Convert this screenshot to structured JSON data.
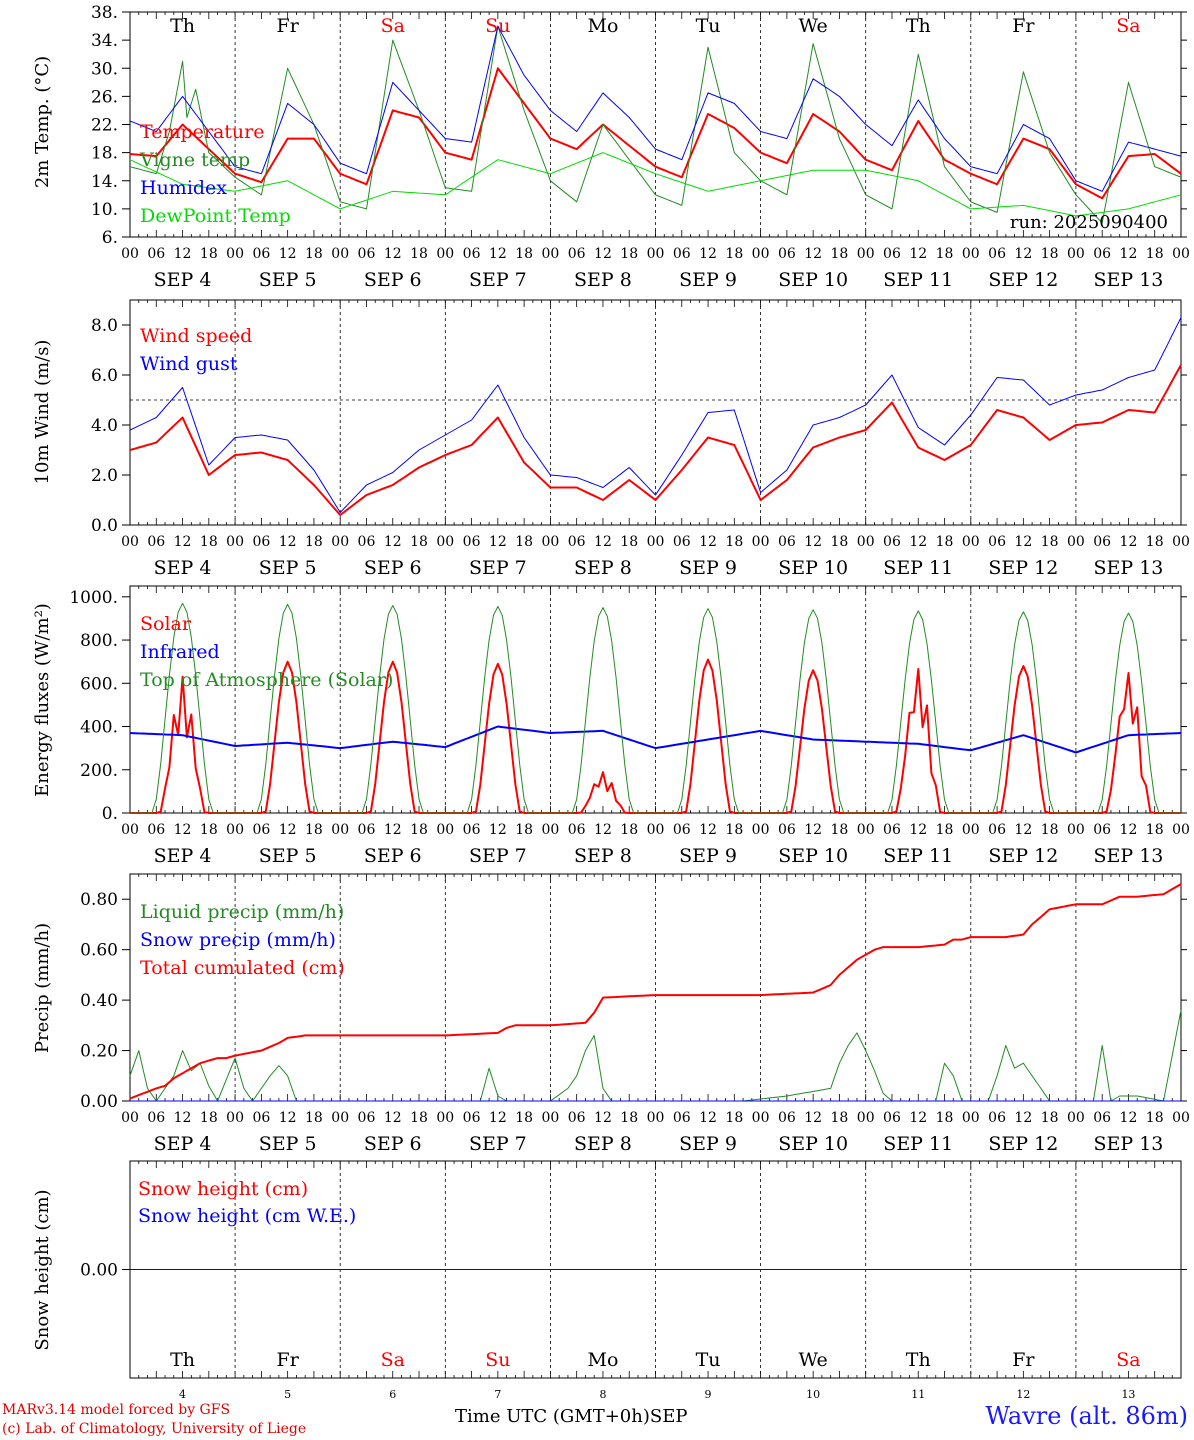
{
  "run_label": "run: 2025090400",
  "days": {
    "weekdays": [
      "Th",
      "Fr",
      "Sa",
      "Su",
      "Mo",
      "Tu",
      "We",
      "Th",
      "Fr",
      "Sa"
    ],
    "weekend_flags": [
      false,
      false,
      true,
      true,
      false,
      false,
      false,
      false,
      false,
      true
    ],
    "dates": [
      "SEP  4",
      "SEP  5",
      "SEP  6",
      "SEP  7",
      "SEP  8",
      "SEP  9",
      "SEP 10",
      "SEP 11",
      "SEP 12",
      "SEP 13"
    ],
    "day_numbers": [
      "4",
      "5",
      "6",
      "7",
      "8",
      "9",
      "10",
      "11",
      "12",
      "13"
    ],
    "hour_labels": [
      "00",
      "06",
      "12",
      "18"
    ],
    "final_hour_label": "00"
  },
  "colors": {
    "red": "#ff0000",
    "green": "#228b22",
    "blue": "#0000ff",
    "lightgreen": "#00dd00",
    "weekend": "#ff0000"
  },
  "footer": {
    "model": "MARv3.14 model forced by GFS",
    "lab": "(c) Lab. of Climatology, University of Liege",
    "axis_title": "Time UTC (GMT+0h)",
    "month": "SEP",
    "station": "Wavre (alt. 86m)"
  },
  "chart_data": [
    {
      "type": "line",
      "ylabel": "2m Temp. (°C)",
      "ylim": [
        6,
        38
      ],
      "yticks": [
        "6.",
        "10.",
        "14.",
        "18.",
        "22.",
        "26.",
        "30.",
        "34.",
        "38."
      ],
      "weekday_labels_on_top": true,
      "series": [
        {
          "name": "Temperature",
          "color": "red",
          "width": 2,
          "hours": [
            0,
            6,
            12,
            18,
            24,
            30,
            36,
            42,
            48,
            54,
            60,
            66,
            72,
            78,
            84,
            90,
            96,
            102,
            108,
            114,
            120,
            126,
            132,
            138,
            144,
            150,
            156,
            162,
            168,
            174,
            180,
            186,
            192,
            198,
            204,
            210,
            216,
            222,
            228,
            234,
            240
          ],
          "values": [
            17.8,
            17.5,
            22,
            18.5,
            15,
            13.8,
            20,
            20,
            15,
            13.5,
            24,
            23,
            18,
            17,
            30,
            25,
            20,
            18.5,
            22,
            19,
            16,
            14.5,
            23.5,
            21.5,
            18,
            16.5,
            23.5,
            21,
            17,
            15.5,
            22.5,
            17,
            15,
            13.5,
            20,
            18.5,
            13.5,
            11.5,
            17.5,
            17.8,
            15
          ]
        },
        {
          "name": "Vigne temp",
          "color": "green",
          "width": 1,
          "hours": [
            0,
            6,
            9,
            12,
            13,
            15,
            18,
            24,
            30,
            36,
            42,
            48,
            54,
            60,
            66,
            72,
            78,
            84,
            90,
            96,
            102,
            108,
            114,
            120,
            126,
            132,
            138,
            144,
            150,
            156,
            162,
            168,
            174,
            180,
            186,
            192,
            198,
            204,
            210,
            216,
            222,
            228,
            234,
            240
          ],
          "values": [
            16,
            15,
            21,
            31,
            23,
            27,
            18,
            14.5,
            12,
            30,
            22,
            11,
            10,
            34,
            24,
            13,
            12.5,
            36,
            24,
            14,
            11,
            22,
            17,
            12,
            10.5,
            33,
            18,
            14,
            12,
            33.5,
            20,
            12,
            10,
            32,
            16,
            11,
            9.5,
            29.5,
            18,
            12,
            8,
            28,
            16,
            14.5
          ]
        },
        {
          "name": "Humidex",
          "color": "blue",
          "width": 1,
          "hours": [
            0,
            6,
            12,
            18,
            24,
            30,
            36,
            42,
            48,
            54,
            60,
            66,
            72,
            78,
            84,
            90,
            96,
            102,
            108,
            114,
            120,
            126,
            132,
            138,
            144,
            150,
            156,
            162,
            168,
            174,
            180,
            186,
            192,
            198,
            204,
            210,
            216,
            222,
            228,
            234,
            240
          ],
          "values": [
            22.5,
            21,
            26,
            21,
            16,
            15,
            25,
            22,
            16.5,
            15,
            28,
            24,
            20,
            19.5,
            36,
            29,
            24,
            21,
            26.5,
            23,
            18.5,
            17,
            26.5,
            25,
            21,
            20,
            28.5,
            26,
            22,
            19,
            25.5,
            20,
            16,
            15,
            22,
            20,
            14,
            12.5,
            19.5,
            18.5,
            17.5
          ]
        },
        {
          "name": "DewPoint Temp",
          "color": "lightgreen",
          "width": 1,
          "hours": [
            0,
            12,
            24,
            36,
            48,
            60,
            72,
            84,
            96,
            108,
            120,
            132,
            144,
            156,
            168,
            180,
            192,
            204,
            216,
            228,
            240
          ],
          "values": [
            17,
            13.5,
            12.5,
            14,
            10,
            12.5,
            12,
            17,
            15,
            18,
            15,
            12.5,
            14,
            15.5,
            15.5,
            14,
            10,
            10.5,
            9,
            10,
            12
          ]
        }
      ]
    },
    {
      "type": "line",
      "ylabel": "10m Wind (m/s)",
      "ylim": [
        0,
        9
      ],
      "yticks": [
        "0.0",
        "2.0",
        "4.0",
        "6.0",
        "8.0"
      ],
      "reference_line": 5.0,
      "series": [
        {
          "name": "Wind speed",
          "color": "red",
          "width": 2,
          "hours": [
            0,
            6,
            12,
            18,
            24,
            30,
            36,
            42,
            48,
            54,
            60,
            66,
            72,
            78,
            84,
            90,
            96,
            102,
            108,
            114,
            120,
            126,
            132,
            138,
            144,
            150,
            156,
            162,
            168,
            174,
            180,
            186,
            192,
            198,
            204,
            210,
            216,
            222,
            228,
            234,
            240
          ],
          "values": [
            3.0,
            3.3,
            4.3,
            2.0,
            2.8,
            2.9,
            2.6,
            1.6,
            0.4,
            1.2,
            1.6,
            2.3,
            2.8,
            3.2,
            4.3,
            2.5,
            1.5,
            1.5,
            1.0,
            1.8,
            1.0,
            2.2,
            3.5,
            3.2,
            1.0,
            1.8,
            3.1,
            3.5,
            3.8,
            4.9,
            3.1,
            2.6,
            3.2,
            4.6,
            4.3,
            3.4,
            4.0,
            4.1,
            4.6,
            4.5,
            6.4
          ]
        },
        {
          "name": "Wind gust",
          "color": "blue",
          "width": 1,
          "hours": [
            0,
            6,
            12,
            18,
            24,
            30,
            36,
            42,
            48,
            54,
            60,
            66,
            72,
            78,
            84,
            90,
            96,
            102,
            108,
            114,
            120,
            126,
            132,
            138,
            144,
            150,
            156,
            162,
            168,
            174,
            180,
            186,
            192,
            198,
            204,
            210,
            216,
            222,
            228,
            234,
            240
          ],
          "values": [
            3.8,
            4.3,
            5.5,
            2.4,
            3.5,
            3.6,
            3.4,
            2.2,
            0.5,
            1.6,
            2.1,
            3.0,
            3.6,
            4.2,
            5.6,
            3.5,
            2.0,
            1.9,
            1.5,
            2.3,
            1.2,
            2.8,
            4.5,
            4.6,
            1.3,
            2.2,
            4.0,
            4.3,
            4.8,
            6.0,
            3.9,
            3.2,
            4.4,
            5.9,
            5.8,
            4.8,
            5.2,
            5.4,
            5.9,
            6.2,
            8.3
          ]
        }
      ]
    },
    {
      "type": "line",
      "ylabel": "Energy fluxes (W/m²)",
      "ylim": [
        0,
        1050
      ],
      "yticks": [
        "0.",
        "200.",
        "400.",
        "600.",
        "800.",
        "1000."
      ],
      "series": [
        {
          "name": "Solar",
          "color": "red",
          "width": 2,
          "noon_peaks": [
            630,
            700,
            700,
            690,
            190,
            710,
            660,
            680,
            680,
            670
          ],
          "cloudy_days": [
            0,
            4,
            7,
            9
          ]
        },
        {
          "name": "Infrared",
          "color": "blue",
          "width": 2,
          "hours": [
            0,
            12,
            24,
            36,
            48,
            60,
            72,
            84,
            96,
            108,
            120,
            132,
            144,
            156,
            168,
            180,
            192,
            204,
            216,
            228,
            240
          ],
          "values": [
            370,
            360,
            310,
            325,
            300,
            330,
            305,
            400,
            370,
            380,
            300,
            340,
            380,
            340,
            330,
            320,
            290,
            360,
            280,
            360,
            370
          ]
        },
        {
          "name": "Top of Atmosphere (Solar)",
          "color": "green",
          "width": 1,
          "noon_peaks": [
            970,
            965,
            960,
            955,
            950,
            945,
            940,
            935,
            930,
            925
          ]
        }
      ]
    },
    {
      "type": "line",
      "ylabel": "Precip (mm/h)",
      "ylim": [
        0,
        0.9
      ],
      "yticks": [
        "0.00",
        "0.20",
        "0.40",
        "0.60",
        "0.80"
      ],
      "series": [
        {
          "name": "Liquid precip (mm/h)",
          "color": "green",
          "width": 1,
          "hours": [
            0,
            2,
            4,
            6,
            8,
            10,
            12,
            14,
            16,
            18,
            20,
            24,
            26,
            28,
            30,
            32,
            34,
            36,
            38,
            40,
            60,
            80,
            82,
            84,
            86,
            96,
            100,
            102,
            104,
            106,
            108,
            110,
            120,
            130,
            140,
            150,
            160,
            162,
            164,
            166,
            168,
            170,
            172,
            174,
            176,
            178,
            180,
            184,
            186,
            188,
            190,
            192,
            196,
            198,
            200,
            202,
            204,
            206,
            208,
            210,
            216,
            220,
            222,
            224,
            226,
            230,
            236,
            240
          ],
          "values": [
            0.1,
            0.2,
            0.05,
            0,
            0.05,
            0.1,
            0.2,
            0.12,
            0.15,
            0.06,
            0,
            0.17,
            0.05,
            0,
            0.05,
            0.1,
            0.14,
            0.1,
            0,
            0,
            0,
            0,
            0.13,
            0.02,
            0,
            0,
            0.05,
            0.1,
            0.2,
            0.26,
            0.05,
            0,
            0,
            0,
            0,
            0.02,
            0.05,
            0.15,
            0.22,
            0.27,
            0.2,
            0.12,
            0.03,
            0,
            0,
            0,
            0,
            0,
            0.15,
            0.1,
            0,
            0,
            0,
            0.1,
            0.22,
            0.13,
            0.15,
            0.1,
            0.05,
            0,
            0,
            0,
            0.22,
            0,
            0.02,
            0.02,
            0,
            0.36
          ]
        },
        {
          "name": "Snow precip (mm/h)",
          "color": "blue",
          "width": 1,
          "hours": [
            0,
            240
          ],
          "values": [
            0,
            0
          ]
        },
        {
          "name": "Total cumulated (cm)",
          "color": "red",
          "width": 2,
          "hours": [
            0,
            6,
            8,
            10,
            12,
            14,
            16,
            18,
            20,
            22,
            24,
            30,
            34,
            36,
            40,
            48,
            60,
            72,
            84,
            86,
            88,
            90,
            96,
            104,
            106,
            108,
            120,
            132,
            144,
            156,
            160,
            162,
            164,
            166,
            168,
            170,
            172,
            174,
            180,
            186,
            188,
            190,
            192,
            200,
            204,
            206,
            208,
            210,
            216,
            222,
            226,
            230,
            236,
            240
          ],
          "values": [
            0.01,
            0.05,
            0.06,
            0.09,
            0.11,
            0.13,
            0.15,
            0.16,
            0.17,
            0.17,
            0.18,
            0.2,
            0.23,
            0.25,
            0.26,
            0.26,
            0.26,
            0.26,
            0.27,
            0.29,
            0.3,
            0.3,
            0.3,
            0.31,
            0.35,
            0.41,
            0.42,
            0.42,
            0.42,
            0.43,
            0.46,
            0.5,
            0.53,
            0.56,
            0.58,
            0.6,
            0.61,
            0.61,
            0.61,
            0.62,
            0.64,
            0.64,
            0.65,
            0.65,
            0.66,
            0.7,
            0.73,
            0.76,
            0.78,
            0.78,
            0.81,
            0.81,
            0.82,
            0.86
          ]
        }
      ]
    },
    {
      "type": "line",
      "ylabel": "Snow height (cm)",
      "ylim": [
        -1,
        1
      ],
      "yticks": [
        "0.00"
      ],
      "weekday_labels_inside": true,
      "series": [
        {
          "name": "Snow height (cm)",
          "color": "red",
          "width": 1,
          "hours": [
            0,
            240
          ],
          "values": [
            0,
            0
          ]
        },
        {
          "name": "Snow height (cm W.E.)",
          "color": "blue",
          "width": 1,
          "hours": [
            0,
            240
          ],
          "values": [
            0,
            0
          ]
        }
      ]
    }
  ]
}
